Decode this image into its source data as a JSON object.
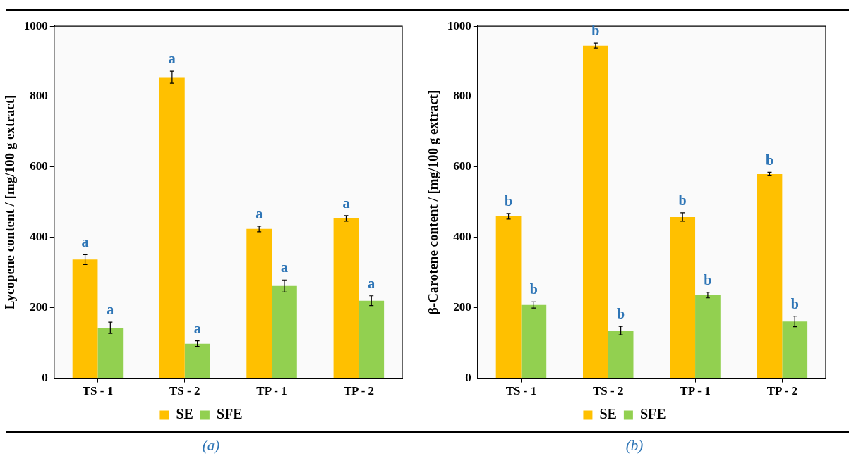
{
  "chart_data": [
    {
      "type": "bar",
      "ylabel": "Lycopene content / [mg/100 g extract]",
      "categories": [
        "TS - 1",
        "TS - 2",
        "TP - 1",
        "TP - 2"
      ],
      "series": [
        {
          "name": "SE",
          "color": "#ffc000",
          "values": [
            337,
            855,
            424,
            454
          ],
          "errors": [
            14,
            17,
            8,
            8
          ]
        },
        {
          "name": "SFE",
          "color": "#92d050",
          "values": [
            143,
            98,
            262,
            220
          ],
          "errors": [
            16,
            8,
            17,
            14
          ]
        }
      ],
      "ylim": [
        0,
        1000
      ],
      "yticks": [
        0,
        200,
        400,
        600,
        800,
        1000
      ],
      "grid": false,
      "legend": "bottom",
      "annotations": [
        {
          "text": "a",
          "x": "TS - 1",
          "y": 337
        },
        {
          "text": "a",
          "x": "TS - 1",
          "y": 143
        },
        {
          "text": "a",
          "x": "TS - 2",
          "y": 855
        },
        {
          "text": "a",
          "x": "TS - 2",
          "y": 98
        },
        {
          "text": "a",
          "x": "TP - 1",
          "y": 424
        },
        {
          "text": "a",
          "x": "TP - 1",
          "y": 262
        },
        {
          "text": "a",
          "x": "TP - 2",
          "y": 454
        },
        {
          "text": "a",
          "x": "TP - 2",
          "y": 220
        },
        "(a)"
      ]
    },
    {
      "type": "bar",
      "ylabel": "β-Carotene content / [mg/100 g extract]",
      "categories": [
        "TS - 1",
        "TS - 2",
        "TP - 1",
        "TP - 2"
      ],
      "series": [
        {
          "name": "SE",
          "color": "#ffc000",
          "values": [
            460,
            945,
            458,
            580
          ],
          "errors": [
            8,
            7,
            12,
            5
          ]
        },
        {
          "name": "SFE",
          "color": "#92d050",
          "values": [
            208,
            135,
            236,
            161
          ],
          "errors": [
            9,
            12,
            8,
            15
          ]
        }
      ],
      "ylim": [
        0,
        1000
      ],
      "yticks": [
        0,
        200,
        400,
        600,
        800,
        1000
      ],
      "grid": false,
      "legend": "bottom",
      "annotations": [
        {
          "text": "b",
          "x": "TS - 1",
          "y": 460
        },
        {
          "text": "b",
          "x": "TS - 1",
          "y": 208
        },
        {
          "text": "b",
          "x": "TS - 2",
          "y": 945
        },
        {
          "text": "b",
          "x": "TS - 2",
          "y": 135
        },
        {
          "text": "b",
          "x": "TP - 1",
          "y": 458
        },
        {
          "text": "b",
          "x": "TP - 1",
          "y": 236
        },
        {
          "text": "b",
          "x": "TP - 2",
          "y": 580
        },
        {
          "text": "b",
          "x": "TP - 2",
          "y": 161
        },
        "(b)"
      ]
    }
  ]
}
